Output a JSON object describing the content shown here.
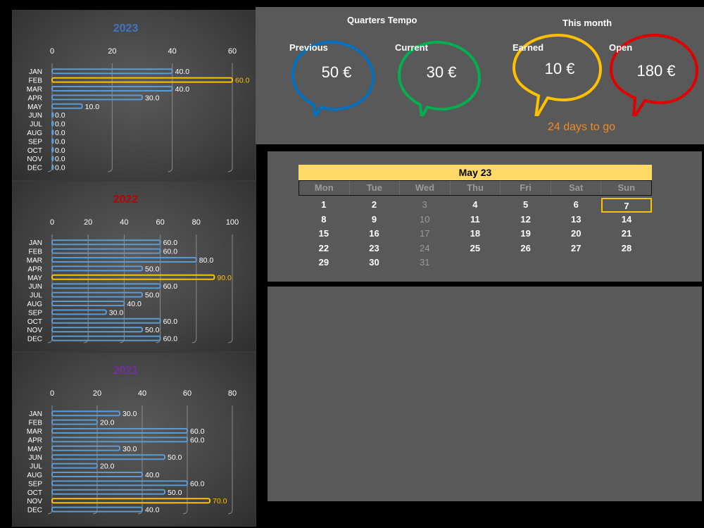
{
  "colors": {
    "bar": "#5b9bd5",
    "highlight": "#ffc000",
    "y2023": "#4472c4",
    "y2022": "#c00000",
    "y2021": "#7030a0"
  },
  "panels": [
    {
      "year": "2023",
      "ticks": [
        "0",
        "20",
        "40",
        "60"
      ],
      "max": 60,
      "months": [
        "JAN",
        "FEB",
        "MAR",
        "APR",
        "MAY",
        "JUN",
        "JUL",
        "AUG",
        "SEP",
        "OCT",
        "NOV",
        "DEC"
      ],
      "values": [
        40,
        60,
        40,
        30,
        10,
        0,
        0,
        0,
        0,
        0,
        0,
        0
      ],
      "labels": [
        "40.0",
        "60.0",
        "40.0",
        "30.0",
        "10.0",
        "0.0",
        "0.0",
        "0.0",
        "0.0",
        "0.0",
        "0.0",
        "0.0"
      ],
      "highlight": 1
    },
    {
      "year": "2022",
      "ticks": [
        "0",
        "20",
        "40",
        "60",
        "80",
        "100"
      ],
      "max": 100,
      "months": [
        "JAN",
        "FEB",
        "MAR",
        "APR",
        "MAY",
        "JUN",
        "JUL",
        "AUG",
        "SEP",
        "OCT",
        "NOV",
        "DEC"
      ],
      "values": [
        60,
        60,
        80,
        50,
        90,
        60,
        50,
        40,
        30,
        60,
        50,
        60
      ],
      "labels": [
        "60.0",
        "60.0",
        "80.0",
        "50.0",
        "90.0",
        "60.0",
        "50.0",
        "40.0",
        "30.0",
        "60.0",
        "50.0",
        "60.0"
      ],
      "highlight": 4
    },
    {
      "year": "2021",
      "ticks": [
        "0",
        "20",
        "40",
        "60",
        "80"
      ],
      "max": 80,
      "months": [
        "JAN",
        "FEB",
        "MAR",
        "APR",
        "MAY",
        "JUN",
        "JUL",
        "AUG",
        "SEP",
        "OCT",
        "NOV",
        "DEC"
      ],
      "values": [
        30,
        20,
        60,
        60,
        30,
        50,
        20,
        40,
        60,
        50,
        70,
        40
      ],
      "labels": [
        "30.0",
        "20.0",
        "60.0",
        "60.0",
        "30.0",
        "50.0",
        "20.0",
        "40.0",
        "60.0",
        "50.0",
        "70.0",
        "40.0"
      ],
      "highlight": 10
    }
  ],
  "summary": {
    "quarters_heading": "Quarters Tempo",
    "month_heading": "This month",
    "previous_label": "Previous",
    "previous_value": "50 €",
    "current_label": "Current",
    "current_value": "30 €",
    "earned_label": "Earned",
    "earned_value": "10 €",
    "open_label": "Open",
    "open_value": "180 €",
    "days_to_go": "24 days to go"
  },
  "calendar": {
    "title": "May 23",
    "weekdays": [
      "Mon",
      "Tue",
      "Wed",
      "Thu",
      "Fri",
      "Sat",
      "Sun"
    ],
    "weeks": [
      [
        "1",
        "2",
        "3",
        "4",
        "5",
        "6",
        "7"
      ],
      [
        "8",
        "9",
        "10",
        "11",
        "12",
        "13",
        "14"
      ],
      [
        "15",
        "16",
        "17",
        "18",
        "19",
        "20",
        "21"
      ],
      [
        "22",
        "23",
        "24",
        "25",
        "26",
        "27",
        "28"
      ],
      [
        "29",
        "30",
        "31",
        "",
        "",
        "",
        ""
      ]
    ],
    "today": "7"
  }
}
